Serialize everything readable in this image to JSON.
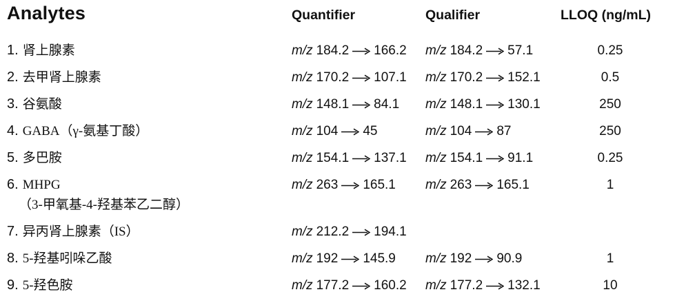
{
  "colors": {
    "text": "#111111",
    "background": "#ffffff"
  },
  "table": {
    "headers": {
      "analytes": "Analytes",
      "quantifier": "Quantifier",
      "qualifier": "Qualifier",
      "lloq": "LLOQ (ng/mL)"
    },
    "mz_label": "m/z",
    "rows": [
      {
        "num": "1.",
        "name": "肾上腺素",
        "name2": "",
        "quant": {
          "parent": "184.2",
          "product": "166.2"
        },
        "qual": {
          "parent": "184.2",
          "product": "57.1"
        },
        "lloq": "0.25"
      },
      {
        "num": "2.",
        "name": "去甲肾上腺素",
        "name2": "",
        "quant": {
          "parent": "170.2",
          "product": "107.1"
        },
        "qual": {
          "parent": "170.2",
          "product": "152.1"
        },
        "lloq": "0.5"
      },
      {
        "num": "3.",
        "name": "谷氨酸",
        "name2": "",
        "quant": {
          "parent": "148.1",
          "product": "84.1"
        },
        "qual": {
          "parent": "148.1",
          "product": "130.1"
        },
        "lloq": "250"
      },
      {
        "num": "4.",
        "name": "GABA（γ-氨基丁酸）",
        "name2": "",
        "quant": {
          "parent": "104",
          "product": "45"
        },
        "qual": {
          "parent": "104",
          "product": "87"
        },
        "lloq": "250"
      },
      {
        "num": "5.",
        "name": "多巴胺",
        "name2": "",
        "quant": {
          "parent": "154.1",
          "product": "137.1"
        },
        "qual": {
          "parent": "154.1",
          "product": "91.1"
        },
        "lloq": "0.25"
      },
      {
        "num": "6.",
        "name": "MHPG",
        "name2": "（3-甲氧基-4-羟基苯乙二醇）",
        "quant": {
          "parent": "263",
          "product": "165.1"
        },
        "qual": {
          "parent": "263",
          "product": "165.1"
        },
        "lloq": "1"
      },
      {
        "num": "7.",
        "name": "异丙肾上腺素（IS）",
        "name2": "",
        "quant": {
          "parent": "212.2",
          "product": "194.1"
        },
        "qual": null,
        "lloq": ""
      },
      {
        "num": "8.",
        "name": "5-羟基吲哚乙酸",
        "name2": "",
        "quant": {
          "parent": "192",
          "product": "145.9"
        },
        "qual": {
          "parent": "192",
          "product": "90.9"
        },
        "lloq": "1"
      },
      {
        "num": "9.",
        "name": "5-羟色胺",
        "name2": "",
        "quant": {
          "parent": "177.2",
          "product": "160.2"
        },
        "qual": {
          "parent": "177.2",
          "product": "132.1"
        },
        "lloq": "10"
      }
    ]
  },
  "chart_data": {
    "type": "table",
    "title": "",
    "columns": [
      "Analytes",
      "Quantifier",
      "Qualifier",
      "LLOQ (ng/mL)"
    ],
    "rows": [
      [
        "1. 肾上腺素",
        "m/z 184.2 → 166.2",
        "m/z 184.2 → 57.1",
        "0.25"
      ],
      [
        "2. 去甲肾上腺素",
        "m/z 170.2 → 107.1",
        "m/z 170.2 → 152.1",
        "0.5"
      ],
      [
        "3. 谷氨酸",
        "m/z 148.1 → 84.1",
        "m/z 148.1 → 130.1",
        "250"
      ],
      [
        "4. GABA（γ-氨基丁酸）",
        "m/z 104 → 45",
        "m/z 104 → 87",
        "250"
      ],
      [
        "5. 多巴胺",
        "m/z 154.1 → 137.1",
        "m/z 154.1 → 91.1",
        "0.25"
      ],
      [
        "6. MHPG（3-甲氧基-4-羟基苯乙二醇）",
        "m/z 263 → 165.1",
        "m/z 263 → 165.1",
        "1"
      ],
      [
        "7. 异丙肾上腺素（IS）",
        "m/z 212.2 → 194.1",
        "",
        ""
      ],
      [
        "8. 5-羟基吲哚乙酸",
        "m/z 192 → 145.9",
        "m/z 192 → 90.9",
        "1"
      ],
      [
        "9. 5-羟色胺",
        "m/z 177.2 → 160.2",
        "m/z 177.2 → 132.1",
        "10"
      ]
    ]
  }
}
